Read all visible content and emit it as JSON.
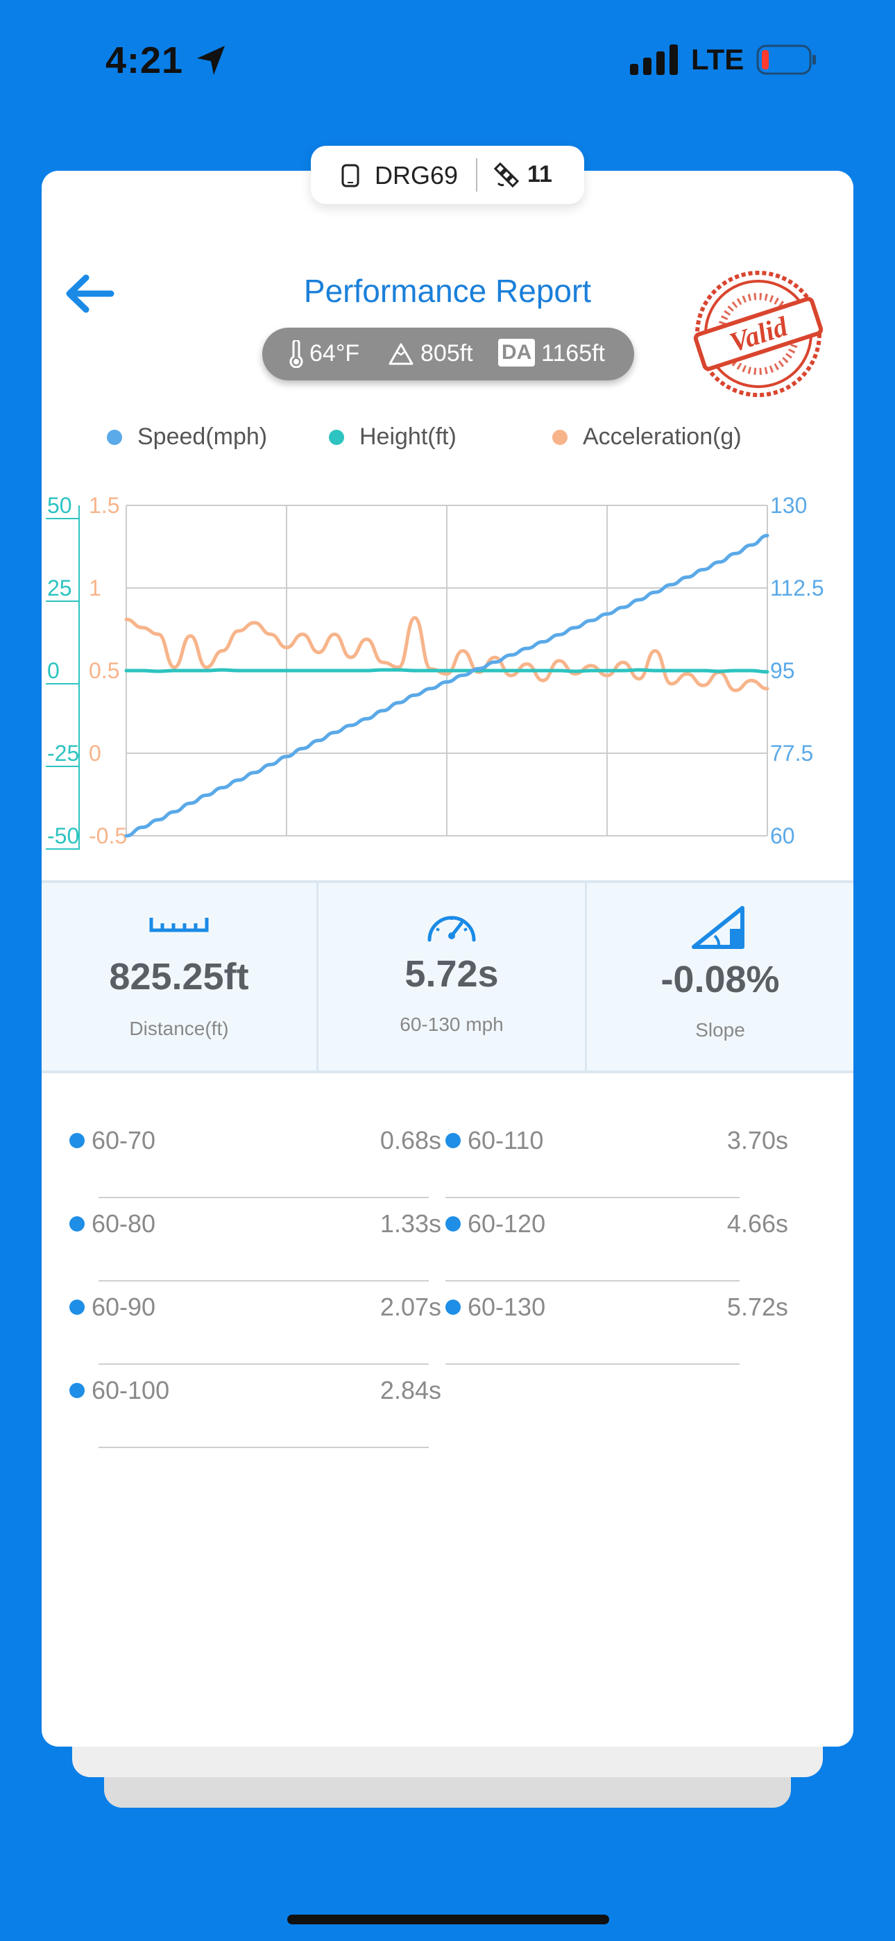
{
  "status_bar": {
    "time": "4:21",
    "network": "LTE",
    "battery_color": "#ff3b30"
  },
  "device": {
    "name": "DRG69",
    "satellites": "11"
  },
  "header": {
    "title": "Performance Report",
    "stamp_text": "Valid"
  },
  "conditions": {
    "temperature": "64°F",
    "elevation": "805ft",
    "da_label": "DA",
    "density_altitude": "1165ft"
  },
  "legend": [
    {
      "label": "Speed(mph)",
      "color": "#5aa9e8"
    },
    {
      "label": "Height(ft)",
      "color": "#2cc3c0"
    },
    {
      "label": "Acceleration(g)",
      "color": "#f7b48a"
    }
  ],
  "chart_data": {
    "type": "line",
    "x": [
      0,
      1,
      2,
      3,
      4,
      5,
      6,
      7,
      8,
      9,
      10,
      11,
      12,
      13,
      14,
      15,
      16,
      17,
      18,
      19,
      20,
      21,
      22,
      23,
      24,
      25,
      26,
      27,
      28,
      29,
      30,
      31,
      32,
      33,
      34,
      35,
      36,
      37,
      38,
      39,
      40
    ],
    "axes": {
      "height_ticks": [
        "50",
        "25",
        "0",
        "-25",
        "-50"
      ],
      "height_range": [
        -50,
        50
      ],
      "accel_ticks": [
        "1.5",
        "1",
        "0.5",
        "0",
        " -0.5"
      ],
      "accel_range": [
        -0.5,
        1.5
      ],
      "speed_ticks": [
        "130",
        "112.5",
        "95",
        "77.5",
        "60"
      ],
      "speed_range": [
        60,
        130
      ]
    },
    "grid": true,
    "series": [
      {
        "name": "Speed(mph)",
        "axis": "right",
        "color": "#5aa9e8",
        "values": [
          60,
          61.8,
          63.4,
          65.1,
          66.9,
          68.6,
          70.2,
          71.8,
          73.4,
          75.1,
          76.8,
          78.5,
          80.2,
          81.9,
          83.4,
          84.8,
          86.5,
          88.2,
          89.8,
          91.2,
          92.6,
          94.0,
          95.4,
          96.8,
          98.3,
          99.7,
          101.1,
          102.6,
          104.1,
          105.6,
          107.0,
          108.4,
          110.0,
          111.6,
          113.2,
          114.8,
          116.4,
          118.0,
          119.8,
          121.6,
          123.6
        ]
      },
      {
        "name": "Height(ft)",
        "axis": "left",
        "color": "#2cc3c0",
        "values": [
          0,
          0,
          -0.2,
          0,
          0,
          0,
          0.2,
          0,
          0,
          0,
          0,
          0,
          0,
          0,
          0,
          0,
          0.2,
          0.2,
          0,
          0,
          0,
          0,
          0,
          0,
          0,
          0,
          0,
          0,
          -0.2,
          0,
          0,
          0,
          0.2,
          0,
          0,
          0,
          0,
          -0.2,
          0,
          0,
          -0.4
        ]
      },
      {
        "name": "Acceleration(g)",
        "axis": "middle",
        "color": "#f7b48a",
        "values": [
          0.81,
          0.76,
          0.72,
          0.52,
          0.71,
          0.52,
          0.62,
          0.74,
          0.79,
          0.72,
          0.64,
          0.72,
          0.61,
          0.72,
          0.58,
          0.69,
          0.55,
          0.52,
          0.82,
          0.51,
          0.48,
          0.62,
          0.49,
          0.58,
          0.47,
          0.54,
          0.44,
          0.56,
          0.48,
          0.53,
          0.47,
          0.55,
          0.45,
          0.62,
          0.42,
          0.48,
          0.41,
          0.49,
          0.38,
          0.44,
          0.39
        ]
      }
    ]
  },
  "stats": [
    {
      "icon": "ruler-icon",
      "value": "825.25ft",
      "label": "Distance(ft)"
    },
    {
      "icon": "speedometer-icon",
      "value": "5.72s",
      "label": "60-130 mph"
    },
    {
      "icon": "slope-icon",
      "value": "-0.08%",
      "label": "Slope"
    }
  ],
  "splits": [
    {
      "name": "60-70",
      "time": "0.68s"
    },
    {
      "name": "60-80",
      "time": "1.33s"
    },
    {
      "name": "60-90",
      "time": "2.07s"
    },
    {
      "name": "60-100",
      "time": "2.84s"
    },
    {
      "name": "60-110",
      "time": "3.70s"
    },
    {
      "name": "60-120",
      "time": "4.66s"
    },
    {
      "name": "60-130",
      "time": "5.72s"
    }
  ]
}
